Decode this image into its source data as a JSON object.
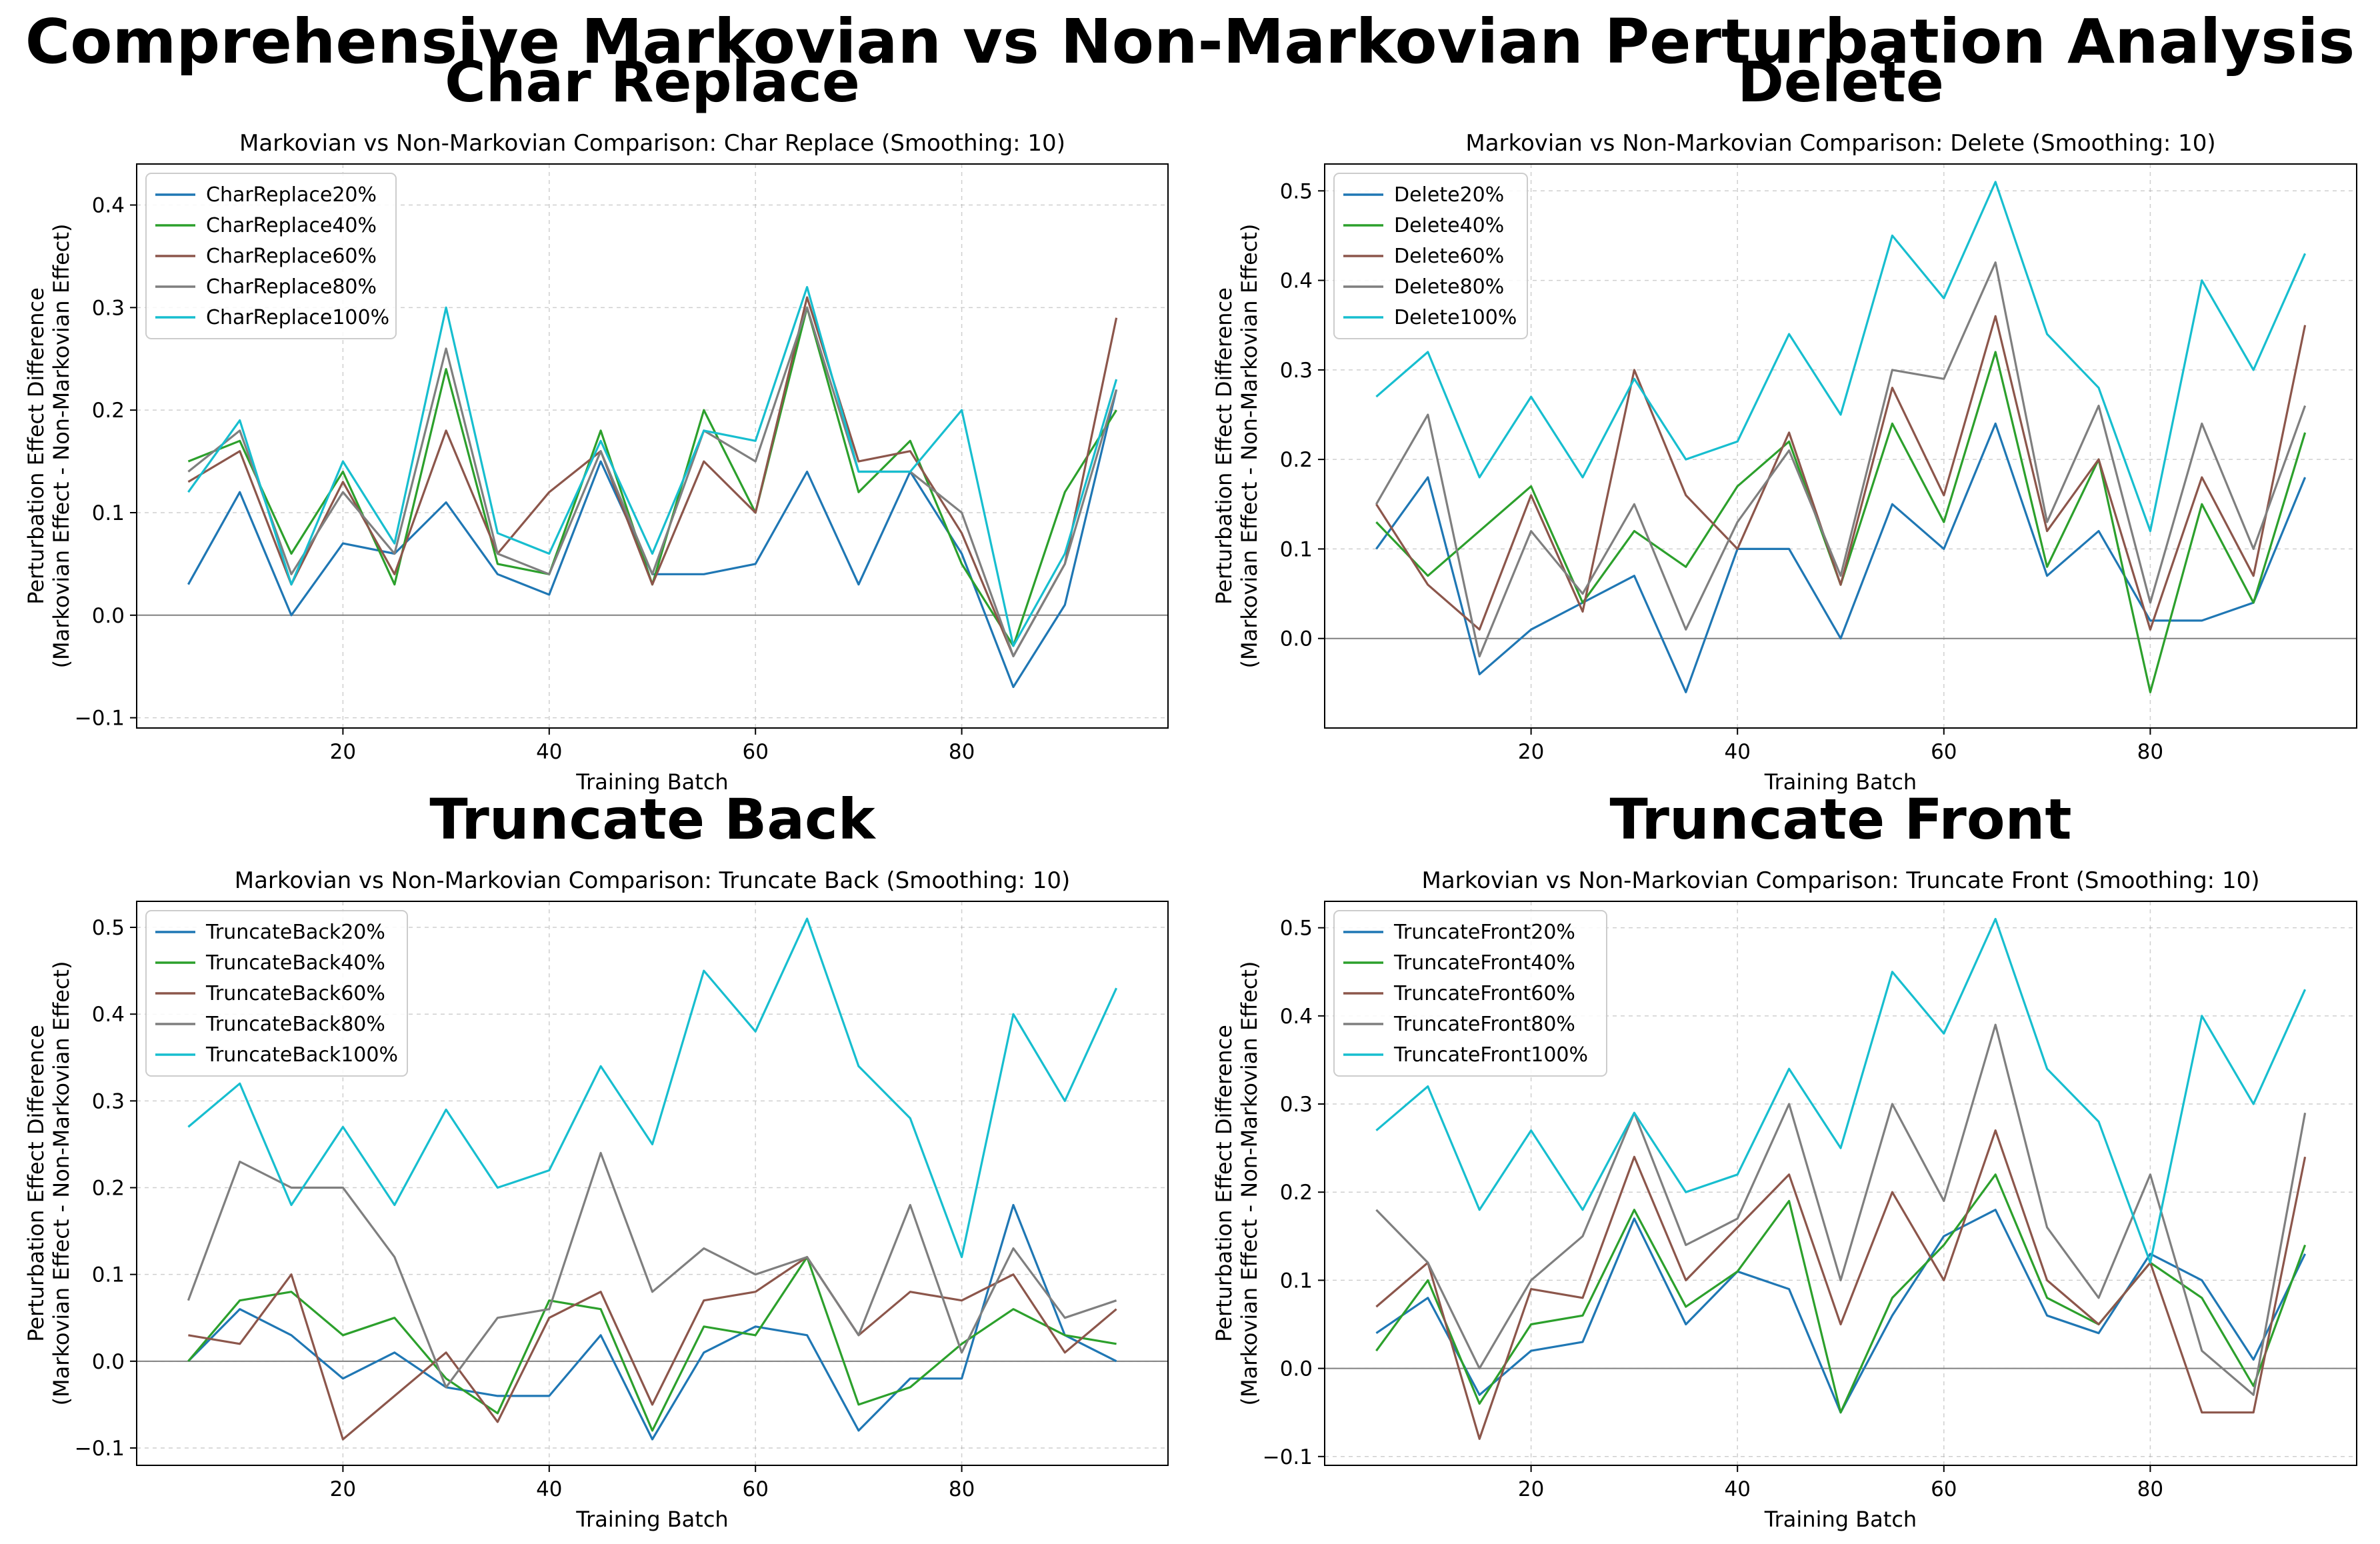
{
  "suptitle": "Comprehensive Markovian vs Non-Markovian Perturbation Analysis",
  "colors": {
    "s20": "#1f77b4",
    "s40": "#2ca02c",
    "s60": "#8c564b",
    "s80": "#7f7f7f",
    "s100": "#17becf",
    "grid": "#b0b0b0",
    "zero_line": "#808080"
  },
  "chart_data": [
    {
      "type": "line",
      "panel_title": "Char Replace",
      "title": "Markovian vs Non-Markovian Comparison: Char Replace (Smoothing: 10)",
      "xlabel": "Training Batch",
      "ylabel": [
        "Perturbation Effect Difference",
        "(Markovian Effect - Non-Markovian Effect)"
      ],
      "xlim": [
        0,
        100
      ],
      "ylim": [
        -0.11,
        0.44
      ],
      "xticks": [
        20,
        40,
        60,
        80
      ],
      "yticks": [
        -0.1,
        0.0,
        0.1,
        0.2,
        0.3,
        0.4
      ],
      "ytick_labels": [
        "−0.1",
        "0.0",
        "0.1",
        "0.2",
        "0.3",
        "0.4"
      ],
      "grid": true,
      "legend_position": "upper-left",
      "x": [
        5,
        10,
        15,
        20,
        25,
        30,
        35,
        40,
        45,
        50,
        55,
        60,
        65,
        70,
        75,
        80,
        85,
        90,
        95
      ],
      "series": [
        {
          "name": "CharReplace20%",
          "values": [
            0.03,
            0.12,
            0.0,
            0.07,
            0.06,
            0.11,
            0.04,
            0.02,
            0.15,
            0.04,
            0.04,
            0.05,
            0.14,
            0.03,
            0.14,
            0.06,
            -0.07,
            0.01,
            0.22
          ]
        },
        {
          "name": "CharReplace40%",
          "values": [
            0.15,
            0.17,
            0.06,
            0.14,
            0.03,
            0.24,
            0.05,
            0.04,
            0.18,
            0.03,
            0.2,
            0.1,
            0.3,
            0.12,
            0.17,
            0.05,
            -0.03,
            0.12,
            0.2
          ]
        },
        {
          "name": "CharReplace60%",
          "values": [
            0.13,
            0.16,
            0.03,
            0.13,
            0.04,
            0.18,
            0.06,
            0.12,
            0.16,
            0.03,
            0.15,
            0.1,
            0.31,
            0.15,
            0.16,
            0.08,
            -0.04,
            0.05,
            0.29
          ]
        },
        {
          "name": "CharReplace80%",
          "values": [
            0.14,
            0.18,
            0.04,
            0.12,
            0.06,
            0.26,
            0.06,
            0.04,
            0.16,
            0.04,
            0.18,
            0.15,
            0.3,
            0.14,
            0.14,
            0.1,
            -0.04,
            0.05,
            0.22
          ]
        },
        {
          "name": "CharReplace100%",
          "values": [
            0.12,
            0.19,
            0.03,
            0.15,
            0.07,
            0.3,
            0.08,
            0.06,
            0.17,
            0.06,
            0.18,
            0.17,
            0.32,
            0.14,
            0.14,
            0.2,
            -0.03,
            0.06,
            0.23
          ]
        }
      ]
    },
    {
      "type": "line",
      "panel_title": "Delete",
      "title": "Markovian vs Non-Markovian Comparison: Delete (Smoothing: 10)",
      "xlabel": "Training Batch",
      "ylabel": [
        "Perturbation Effect Difference",
        "(Markovian Effect - Non-Markovian Effect)"
      ],
      "xlim": [
        0,
        100
      ],
      "ylim": [
        -0.1,
        0.53
      ],
      "xticks": [
        20,
        40,
        60,
        80
      ],
      "yticks": [
        0.0,
        0.1,
        0.2,
        0.3,
        0.4,
        0.5
      ],
      "ytick_labels": [
        "0.0",
        "0.1",
        "0.2",
        "0.3",
        "0.4",
        "0.5"
      ],
      "grid": true,
      "legend_position": "upper-left",
      "x": [
        5,
        10,
        15,
        20,
        25,
        30,
        35,
        40,
        45,
        50,
        55,
        60,
        65,
        70,
        75,
        80,
        85,
        90,
        95
      ],
      "series": [
        {
          "name": "Delete20%",
          "values": [
            0.1,
            0.18,
            -0.04,
            0.01,
            0.04,
            0.07,
            -0.06,
            0.1,
            0.1,
            0.0,
            0.15,
            0.1,
            0.24,
            0.07,
            0.12,
            0.02,
            0.02,
            0.04,
            0.18
          ]
        },
        {
          "name": "Delete40%",
          "values": [
            0.13,
            0.07,
            0.12,
            0.17,
            0.04,
            0.12,
            0.08,
            0.17,
            0.22,
            0.06,
            0.24,
            0.13,
            0.32,
            0.08,
            0.2,
            -0.06,
            0.15,
            0.04,
            0.23
          ]
        },
        {
          "name": "Delete60%",
          "values": [
            0.15,
            0.06,
            0.01,
            0.16,
            0.03,
            0.3,
            0.16,
            0.1,
            0.23,
            0.06,
            0.28,
            0.16,
            0.36,
            0.12,
            0.2,
            0.01,
            0.18,
            0.07,
            0.35
          ]
        },
        {
          "name": "Delete80%",
          "values": [
            0.15,
            0.25,
            -0.02,
            0.12,
            0.05,
            0.15,
            0.01,
            0.13,
            0.21,
            0.07,
            0.3,
            0.29,
            0.42,
            0.13,
            0.26,
            0.04,
            0.24,
            0.1,
            0.26
          ]
        },
        {
          "name": "Delete100%",
          "values": [
            0.27,
            0.32,
            0.18,
            0.27,
            0.18,
            0.29,
            0.2,
            0.22,
            0.34,
            0.25,
            0.45,
            0.38,
            0.51,
            0.34,
            0.28,
            0.12,
            0.4,
            0.3,
            0.43
          ]
        }
      ]
    },
    {
      "type": "line",
      "panel_title": "Truncate Back",
      "title": "Markovian vs Non-Markovian Comparison: Truncate Back (Smoothing: 10)",
      "xlabel": "Training Batch",
      "ylabel": [
        "Perturbation Effect Difference",
        "(Markovian Effect - Non-Markovian Effect)"
      ],
      "xlim": [
        0,
        100
      ],
      "ylim": [
        -0.12,
        0.53
      ],
      "xticks": [
        20,
        40,
        60,
        80
      ],
      "yticks": [
        -0.1,
        0.0,
        0.1,
        0.2,
        0.3,
        0.4,
        0.5
      ],
      "ytick_labels": [
        "−0.1",
        "0.0",
        "0.1",
        "0.2",
        "0.3",
        "0.4",
        "0.5"
      ],
      "grid": true,
      "legend_position": "upper-left",
      "x": [
        5,
        10,
        15,
        20,
        25,
        30,
        35,
        40,
        45,
        50,
        55,
        60,
        65,
        70,
        75,
        80,
        85,
        90,
        95
      ],
      "series": [
        {
          "name": "TruncateBack20%",
          "values": [
            0.0,
            0.06,
            0.03,
            -0.02,
            0.01,
            -0.03,
            -0.04,
            -0.04,
            0.03,
            -0.09,
            0.01,
            0.04,
            0.03,
            -0.08,
            -0.02,
            -0.02,
            0.18,
            0.03,
            0.0
          ]
        },
        {
          "name": "TruncateBack40%",
          "values": [
            0.0,
            0.07,
            0.08,
            0.03,
            0.05,
            -0.02,
            -0.06,
            0.07,
            0.06,
            -0.08,
            0.04,
            0.03,
            0.12,
            -0.05,
            -0.03,
            0.02,
            0.06,
            0.03,
            0.02
          ]
        },
        {
          "name": "TruncateBack60%",
          "values": [
            0.03,
            0.02,
            0.1,
            -0.09,
            -0.04,
            0.01,
            -0.07,
            0.05,
            0.08,
            -0.05,
            0.07,
            0.08,
            0.12,
            0.03,
            0.08,
            0.07,
            0.1,
            0.01,
            0.06
          ]
        },
        {
          "name": "TruncateBack80%",
          "values": [
            0.07,
            0.23,
            0.2,
            0.2,
            0.12,
            -0.03,
            0.05,
            0.06,
            0.24,
            0.08,
            0.13,
            0.1,
            0.12,
            0.03,
            0.18,
            0.01,
            0.13,
            0.05,
            0.07
          ]
        },
        {
          "name": "TruncateBack100%",
          "values": [
            0.27,
            0.32,
            0.18,
            0.27,
            0.18,
            0.29,
            0.2,
            0.22,
            0.34,
            0.25,
            0.45,
            0.38,
            0.51,
            0.34,
            0.28,
            0.12,
            0.4,
            0.3,
            0.43
          ]
        }
      ]
    },
    {
      "type": "line",
      "panel_title": "Truncate Front",
      "title": "Markovian vs Non-Markovian Comparison: Truncate Front (Smoothing: 10)",
      "xlabel": "Training Batch",
      "ylabel": [
        "Perturbation Effect Difference",
        "(Markovian Effect - Non-Markovian Effect)"
      ],
      "xlim": [
        0,
        100
      ],
      "ylim": [
        -0.11,
        0.53
      ],
      "xticks": [
        20,
        40,
        60,
        80
      ],
      "yticks": [
        -0.1,
        0.0,
        0.1,
        0.2,
        0.3,
        0.4,
        0.5
      ],
      "ytick_labels": [
        "−0.1",
        "0.0",
        "0.1",
        "0.2",
        "0.3",
        "0.4",
        "0.5"
      ],
      "grid": true,
      "legend_position": "upper-left",
      "x": [
        5,
        10,
        15,
        20,
        25,
        30,
        35,
        40,
        45,
        50,
        55,
        60,
        65,
        70,
        75,
        80,
        85,
        90,
        95
      ],
      "series": [
        {
          "name": "TruncateFront20%",
          "values": [
            0.04,
            0.08,
            -0.03,
            0.02,
            0.03,
            0.17,
            0.05,
            0.11,
            0.09,
            -0.05,
            0.06,
            0.15,
            0.18,
            0.06,
            0.04,
            0.13,
            0.1,
            0.01,
            0.13
          ]
        },
        {
          "name": "TruncateFront40%",
          "values": [
            0.02,
            0.1,
            -0.04,
            0.05,
            0.06,
            0.18,
            0.07,
            0.11,
            0.19,
            -0.05,
            0.08,
            0.14,
            0.22,
            0.08,
            0.05,
            0.12,
            0.08,
            -0.02,
            0.14
          ]
        },
        {
          "name": "TruncateFront60%",
          "values": [
            0.07,
            0.12,
            -0.08,
            0.09,
            0.08,
            0.24,
            0.1,
            0.16,
            0.22,
            0.05,
            0.2,
            0.1,
            0.27,
            0.1,
            0.05,
            0.12,
            -0.05,
            -0.05,
            0.24
          ]
        },
        {
          "name": "TruncateFront80%",
          "values": [
            0.18,
            0.12,
            0.0,
            0.1,
            0.15,
            0.29,
            0.14,
            0.17,
            0.3,
            0.1,
            0.3,
            0.19,
            0.39,
            0.16,
            0.08,
            0.22,
            0.02,
            -0.03,
            0.29
          ]
        },
        {
          "name": "TruncateFront100%",
          "values": [
            0.27,
            0.32,
            0.18,
            0.27,
            0.18,
            0.29,
            0.2,
            0.22,
            0.34,
            0.25,
            0.45,
            0.38,
            0.51,
            0.34,
            0.28,
            0.12,
            0.4,
            0.3,
            0.43
          ]
        }
      ]
    }
  ]
}
